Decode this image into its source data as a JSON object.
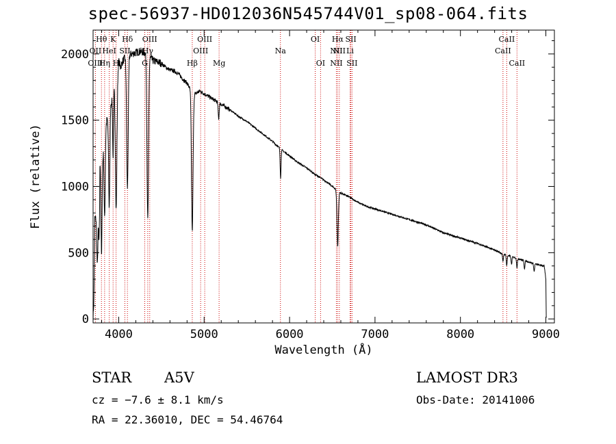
{
  "chart_data": {
    "type": "line",
    "title": "spec-56937-HD012036N545744V01_sp08-064.fits",
    "xlabel": "Wavelength (Å)",
    "ylabel": "Flux (relative)",
    "xlim": [
      3700,
      9100
    ],
    "ylim": [
      -30,
      2180
    ],
    "x_ticks": [
      4000,
      5000,
      6000,
      7000,
      8000,
      9000
    ],
    "y_ticks": [
      0,
      500,
      1000,
      1500,
      2000
    ],
    "series": [
      {
        "name": "flux",
        "continuum": [
          [
            3700,
            0
          ],
          [
            3710,
            150
          ],
          [
            3720,
            760
          ],
          [
            3740,
            760
          ],
          [
            3760,
            850
          ],
          [
            3780,
            1300
          ],
          [
            3800,
            1000
          ],
          [
            3820,
            1300
          ],
          [
            3840,
            1400
          ],
          [
            3860,
            1500
          ],
          [
            3880,
            1500
          ],
          [
            3900,
            1600
          ],
          [
            3920,
            1650
          ],
          [
            3940,
            1750
          ],
          [
            3960,
            1800
          ],
          [
            3980,
            1850
          ],
          [
            4000,
            1950
          ],
          [
            4020,
            1900
          ],
          [
            4050,
            1950
          ],
          [
            4100,
            1990
          ],
          [
            4150,
            2000
          ],
          [
            4200,
            2010
          ],
          [
            4250,
            2020
          ],
          [
            4300,
            2010
          ],
          [
            4350,
            1990
          ],
          [
            4400,
            1950
          ],
          [
            4450,
            1940
          ],
          [
            4500,
            1930
          ],
          [
            4550,
            1900
          ],
          [
            4600,
            1880
          ],
          [
            4650,
            1870
          ],
          [
            4700,
            1850
          ],
          [
            4750,
            1810
          ],
          [
            4800,
            1780
          ],
          [
            4850,
            1720
          ],
          [
            4880,
            1700
          ],
          [
            4900,
            1700
          ],
          [
            4950,
            1720
          ],
          [
            5000,
            1700
          ],
          [
            5100,
            1660
          ],
          [
            5200,
            1620
          ],
          [
            5300,
            1580
          ],
          [
            5400,
            1530
          ],
          [
            5500,
            1490
          ],
          [
            5600,
            1440
          ],
          [
            5700,
            1390
          ],
          [
            5800,
            1340
          ],
          [
            5900,
            1280
          ],
          [
            6000,
            1230
          ],
          [
            6100,
            1180
          ],
          [
            6200,
            1140
          ],
          [
            6300,
            1090
          ],
          [
            6400,
            1050
          ],
          [
            6500,
            1000
          ],
          [
            6600,
            950
          ],
          [
            6700,
            920
          ],
          [
            6800,
            880
          ],
          [
            6900,
            850
          ],
          [
            7000,
            830
          ],
          [
            7200,
            790
          ],
          [
            7400,
            750
          ],
          [
            7600,
            710
          ],
          [
            7800,
            650
          ],
          [
            8000,
            610
          ],
          [
            8200,
            570
          ],
          [
            8400,
            520
          ],
          [
            8500,
            490
          ],
          [
            8600,
            470
          ],
          [
            8700,
            450
          ],
          [
            8800,
            430
          ],
          [
            8900,
            410
          ],
          [
            8980,
            400
          ],
          [
            9000,
            300
          ],
          [
            9005,
            10
          ]
        ],
        "absorption": [
          {
            "center": 3750,
            "depth": 400,
            "width": 6
          },
          {
            "center": 3771,
            "depth": 500,
            "width": 6
          },
          {
            "center": 3798,
            "depth": 550,
            "width": 6
          },
          {
            "center": 3835,
            "depth": 600,
            "width": 7
          },
          {
            "center": 3889,
            "depth": 700,
            "width": 7
          },
          {
            "center": 3934,
            "depth": 500,
            "width": 5
          },
          {
            "center": 3970,
            "depth": 1000,
            "width": 9
          },
          {
            "center": 4102,
            "depth": 1000,
            "width": 9
          },
          {
            "center": 4340,
            "depth": 1250,
            "width": 9
          },
          {
            "center": 4861,
            "depth": 1050,
            "width": 9
          },
          {
            "center": 5170,
            "depth": 120,
            "width": 6
          },
          {
            "center": 5895,
            "depth": 220,
            "width": 5
          },
          {
            "center": 6563,
            "depth": 420,
            "width": 8
          },
          {
            "center": 8498,
            "depth": 60,
            "width": 5
          },
          {
            "center": 8542,
            "depth": 80,
            "width": 5
          },
          {
            "center": 8598,
            "depth": 60,
            "width": 5
          },
          {
            "center": 8662,
            "depth": 70,
            "width": 5
          },
          {
            "center": 8750,
            "depth": 60,
            "width": 5
          },
          {
            "center": 8863,
            "depth": 60,
            "width": 5
          }
        ]
      }
    ],
    "line_markers": [
      {
        "label": "Hθ",
        "wavelength": 3798,
        "row": 1
      },
      {
        "label": "OII",
        "wavelength": 3727,
        "row": 2
      },
      {
        "label": "OIII",
        "wavelength": 3727,
        "row": 3
      },
      {
        "label": "Hη",
        "wavelength": 3835,
        "row": 3
      },
      {
        "label": "HeI",
        "wavelength": 3889,
        "row": 2
      },
      {
        "label": "K",
        "wavelength": 3934,
        "row": 1
      },
      {
        "label": "H",
        "wavelength": 3969,
        "row": 3
      },
      {
        "label": "Hδ",
        "wavelength": 4102,
        "row": 1
      },
      {
        "label": "SII",
        "wavelength": 4072,
        "row": 2
      },
      {
        "label": "OIII",
        "wavelength": 4363,
        "row": 1
      },
      {
        "label": "Hγ",
        "wavelength": 4340,
        "row": 2
      },
      {
        "label": "G",
        "wavelength": 4305,
        "row": 3
      },
      {
        "label": "Hβ",
        "wavelength": 4861,
        "row": 3
      },
      {
        "label": "OIII",
        "wavelength": 4959,
        "row": 2
      },
      {
        "label": "OIII",
        "wavelength": 5007,
        "row": 1
      },
      {
        "label": "Mg",
        "wavelength": 5175,
        "row": 3
      },
      {
        "label": "Na",
        "wavelength": 5893,
        "row": 2
      },
      {
        "label": "OI",
        "wavelength": 6300,
        "row": 1
      },
      {
        "label": "OI",
        "wavelength": 6363,
        "row": 3
      },
      {
        "label": "NII",
        "wavelength": 6548,
        "row": 2
      },
      {
        "label": "NII",
        "wavelength": 6548,
        "row": 3
      },
      {
        "label": "Hα",
        "wavelength": 6563,
        "row": 1
      },
      {
        "label": "NII",
        "wavelength": 6583,
        "row": 2
      },
      {
        "label": "SII",
        "wavelength": 6717,
        "row": 1
      },
      {
        "label": "SII",
        "wavelength": 6731,
        "row": 3
      },
      {
        "label": "Li",
        "wavelength": 6708,
        "row": 2
      },
      {
        "label": "CaII",
        "wavelength": 8498,
        "row": 2
      },
      {
        "label": "CaII",
        "wavelength": 8542,
        "row": 1
      },
      {
        "label": "CaII",
        "wavelength": 8662,
        "row": 3
      }
    ],
    "colors": {
      "spectrum": "#000000",
      "marker": "#cc0000",
      "axis": "#000000"
    }
  },
  "info": {
    "obj_type": "STAR",
    "subclass": "A5V",
    "survey": "LAMOST DR3",
    "cz": "cz = −7.6 ± 8.1 km/s",
    "obs_date": "Obs-Date: 20141006",
    "coords": "RA =  22.36010, DEC =  54.46764"
  }
}
